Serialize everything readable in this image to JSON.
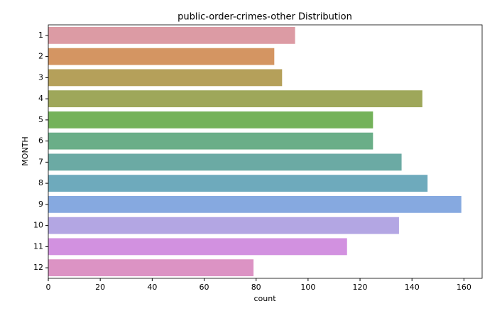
{
  "chart_data": {
    "type": "barh",
    "title": "public-order-crimes-other Distribution",
    "xlabel": "count",
    "ylabel": "MONTH",
    "categories": [
      "1",
      "2",
      "3",
      "4",
      "5",
      "6",
      "7",
      "8",
      "9",
      "10",
      "11",
      "12"
    ],
    "values": [
      95,
      87,
      90,
      144,
      125,
      125,
      136,
      146,
      159,
      135,
      115,
      79
    ],
    "colors": [
      "#dc9ba4",
      "#d49562",
      "#b5a05a",
      "#9ea75a",
      "#74b25a",
      "#6aae88",
      "#6baaa4",
      "#6eaabc",
      "#86a9e0",
      "#b3a6e3",
      "#d291e0",
      "#dc93c4"
    ],
    "xlim": [
      0,
      167
    ],
    "xticks": [
      0,
      20,
      40,
      60,
      80,
      100,
      120,
      140,
      160
    ]
  }
}
